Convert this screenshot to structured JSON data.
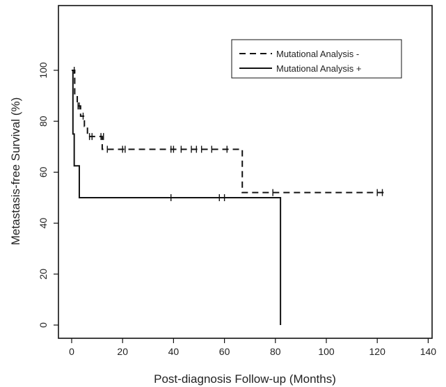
{
  "chart_data": {
    "type": "line",
    "title": "",
    "xlabel": "Post-diagnosis Follow-up (Months)",
    "ylabel": "Metastasis-free Survival (%)",
    "xlim": [
      0,
      140
    ],
    "ylim": [
      0,
      100
    ],
    "xticks": [
      0,
      20,
      40,
      60,
      80,
      100,
      120,
      140
    ],
    "yticks": [
      0,
      20,
      40,
      60,
      80,
      100
    ],
    "grid": false,
    "legend": "top-right",
    "series": [
      {
        "name": "Mutational Analysis -",
        "dash": "dashed",
        "step_x": [
          0,
          1.2,
          2.2,
          3.5,
          5,
          6.2,
          12,
          67,
          82,
          123
        ],
        "step_y": [
          100,
          90,
          86,
          82,
          78,
          74,
          69,
          52,
          52,
          52
        ],
        "censored_x": [
          1,
          2.5,
          3,
          4.5,
          7,
          8,
          11.5,
          12.5,
          14,
          20,
          21,
          39,
          40,
          43,
          47,
          49,
          51,
          55,
          61,
          79,
          120,
          122
        ],
        "censored_y": [
          100,
          86,
          86,
          82,
          74,
          74,
          74,
          74,
          69,
          69,
          69,
          69,
          69,
          69,
          69,
          69,
          69,
          69,
          69,
          52,
          52,
          52
        ]
      },
      {
        "name": "Mutational Analysis +",
        "dash": "solid",
        "step_x": [
          0,
          0.5,
          1,
          3,
          82,
          82
        ],
        "step_y": [
          100,
          75,
          62.5,
          50,
          50,
          0
        ],
        "censored_x": [
          39,
          58,
          60
        ],
        "censored_y": [
          50,
          50,
          50
        ]
      }
    ]
  }
}
